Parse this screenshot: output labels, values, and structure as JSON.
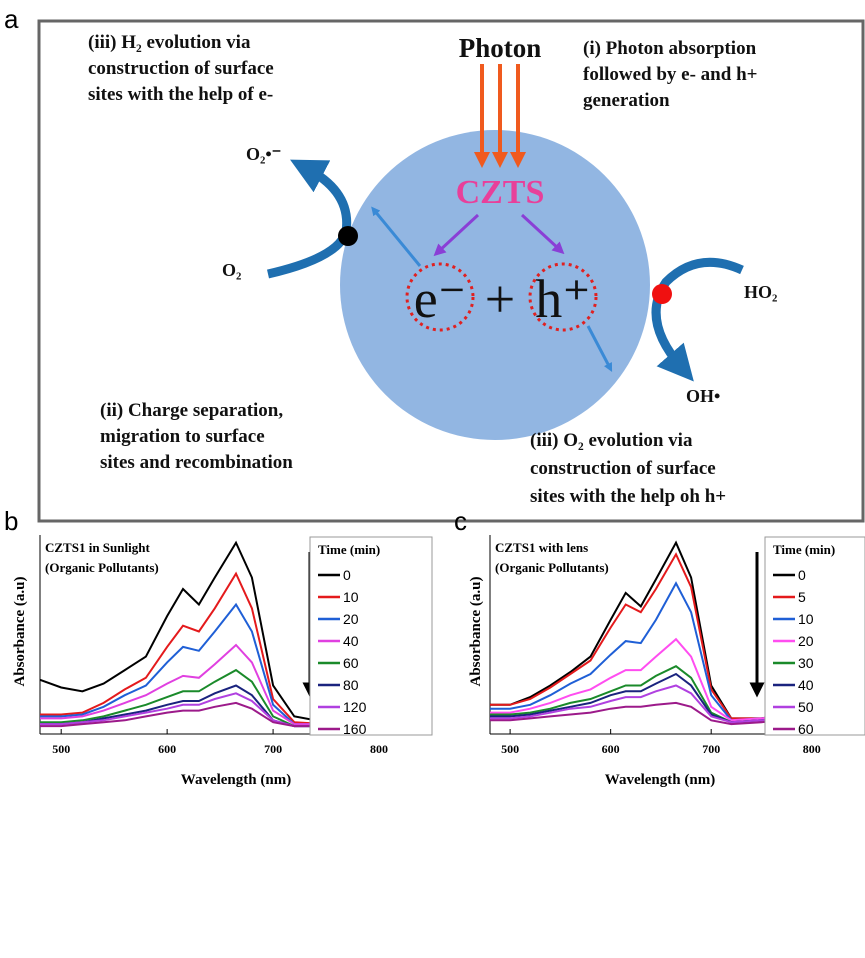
{
  "diagram": {
    "panel_label": "a",
    "photon": "Photon",
    "material": "CZTS",
    "electron": "e⁻",
    "plus": "+",
    "hole": "h⁺",
    "step_i": [
      "(i) Photon absorption",
      "followed by e- and h+",
      "generation"
    ],
    "step_iii_h2": [
      "(iii) H₂ evolution via",
      "construction of surface",
      "sites with the help of e-"
    ],
    "step_ii": [
      "(ii) Charge separation,",
      "migration to surface",
      "sites and recombination"
    ],
    "step_iii_o2": [
      "(iii) O₂ evolution via",
      "construction of surface",
      "sites with the help oh h+"
    ],
    "species": {
      "o2": "O₂",
      "o2_radical": "O₂•⁻",
      "ho2": "HO₂",
      "oh": "OH•"
    }
  },
  "chart_data": [
    {
      "type": "line",
      "panel_label": "b",
      "annotation": [
        "CZTS1 in Sunlight",
        "(Organic Pollutants)"
      ],
      "x_label": "Wavelength (nm)",
      "y_label": "Absorbance (a.u)",
      "legend_title": "Time (min)",
      "xlim": [
        480,
        850
      ],
      "ylim": [
        0,
        1
      ],
      "xticks": [
        500,
        600,
        700,
        800
      ],
      "x": [
        480,
        500,
        520,
        540,
        560,
        580,
        600,
        615,
        630,
        645,
        665,
        680,
        700,
        720,
        750,
        800,
        850
      ],
      "series": [
        {
          "name": "0",
          "color": "#000000",
          "values": [
            0.25,
            0.21,
            0.19,
            0.23,
            0.3,
            0.37,
            0.58,
            0.72,
            0.64,
            0.78,
            0.96,
            0.78,
            0.22,
            0.06,
            0.03,
            0.03,
            0.04
          ]
        },
        {
          "name": "10",
          "color": "#e41a1c",
          "values": [
            0.07,
            0.07,
            0.08,
            0.13,
            0.2,
            0.26,
            0.42,
            0.53,
            0.5,
            0.62,
            0.8,
            0.62,
            0.15,
            0.03,
            0.02,
            0.04,
            0.08
          ]
        },
        {
          "name": "20",
          "color": "#1f5fd6",
          "values": [
            0.06,
            0.06,
            0.07,
            0.11,
            0.17,
            0.22,
            0.34,
            0.42,
            0.4,
            0.5,
            0.64,
            0.5,
            0.12,
            0.02,
            0.02,
            0.04,
            0.07
          ]
        },
        {
          "name": "40",
          "color": "#e040e0",
          "values": [
            0.05,
            0.05,
            0.06,
            0.09,
            0.13,
            0.17,
            0.23,
            0.27,
            0.26,
            0.33,
            0.43,
            0.34,
            0.09,
            0.02,
            0.02,
            0.05,
            0.13
          ]
        },
        {
          "name": "60",
          "color": "#1a8a2a",
          "values": [
            0.03,
            0.03,
            0.04,
            0.06,
            0.09,
            0.12,
            0.16,
            0.19,
            0.19,
            0.24,
            0.3,
            0.24,
            0.06,
            0.01,
            0.01,
            0.02,
            0.06
          ]
        },
        {
          "name": "80",
          "color": "#1a237e",
          "values": [
            0.02,
            0.02,
            0.03,
            0.05,
            0.07,
            0.09,
            0.12,
            0.14,
            0.14,
            0.18,
            0.22,
            0.17,
            0.04,
            0.01,
            0.01,
            0.02,
            0.03
          ]
        },
        {
          "name": "120",
          "color": "#b040e0",
          "values": [
            0.02,
            0.02,
            0.03,
            0.04,
            0.06,
            0.08,
            0.1,
            0.12,
            0.12,
            0.15,
            0.18,
            0.14,
            0.04,
            0.01,
            0.01,
            0.02,
            0.03
          ]
        },
        {
          "name": "160",
          "color": "#9c1a8a",
          "values": [
            0.01,
            0.01,
            0.02,
            0.03,
            0.04,
            0.06,
            0.08,
            0.09,
            0.09,
            0.11,
            0.13,
            0.1,
            0.03,
            0.01,
            0.01,
            0.02,
            0.03
          ]
        }
      ]
    },
    {
      "type": "line",
      "panel_label": "c",
      "annotation": [
        "CZTS1 with lens",
        "(Organic Pollutants)"
      ],
      "x_label": "Wavelength (nm)",
      "y_label": "Absorbance (a.u)",
      "legend_title": "Time (min)",
      "xlim": [
        480,
        850
      ],
      "ylim": [
        0,
        1
      ],
      "xticks": [
        500,
        600,
        700,
        800
      ],
      "x": [
        480,
        500,
        520,
        540,
        560,
        580,
        600,
        615,
        630,
        645,
        665,
        680,
        700,
        720,
        750,
        800,
        850
      ],
      "series": [
        {
          "name": "0",
          "color": "#000000",
          "values": [
            0.12,
            0.12,
            0.16,
            0.22,
            0.29,
            0.37,
            0.56,
            0.7,
            0.63,
            0.77,
            0.96,
            0.78,
            0.22,
            0.05,
            0.05,
            0.09,
            0.2
          ]
        },
        {
          "name": "5",
          "color": "#e41a1c",
          "values": [
            0.12,
            0.12,
            0.15,
            0.21,
            0.28,
            0.35,
            0.52,
            0.64,
            0.6,
            0.72,
            0.9,
            0.73,
            0.2,
            0.05,
            0.05,
            0.09,
            0.2
          ]
        },
        {
          "name": "10",
          "color": "#1f5fd6",
          "values": [
            0.1,
            0.1,
            0.12,
            0.17,
            0.23,
            0.28,
            0.38,
            0.45,
            0.44,
            0.56,
            0.75,
            0.6,
            0.17,
            0.04,
            0.05,
            0.08,
            0.18
          ]
        },
        {
          "name": "20",
          "color": "#ff4df0",
          "values": [
            0.08,
            0.08,
            0.1,
            0.13,
            0.17,
            0.2,
            0.26,
            0.3,
            0.3,
            0.37,
            0.46,
            0.37,
            0.11,
            0.04,
            0.05,
            0.08,
            0.17
          ]
        },
        {
          "name": "30",
          "color": "#1a8a2a",
          "values": [
            0.07,
            0.07,
            0.08,
            0.1,
            0.13,
            0.15,
            0.19,
            0.22,
            0.22,
            0.27,
            0.32,
            0.26,
            0.08,
            0.03,
            0.04,
            0.07,
            0.15
          ]
        },
        {
          "name": "40",
          "color": "#1a237e",
          "values": [
            0.06,
            0.06,
            0.07,
            0.09,
            0.11,
            0.13,
            0.17,
            0.19,
            0.19,
            0.23,
            0.28,
            0.22,
            0.07,
            0.03,
            0.04,
            0.07,
            0.14
          ]
        },
        {
          "name": "50",
          "color": "#b040e0",
          "values": [
            0.05,
            0.05,
            0.06,
            0.08,
            0.1,
            0.11,
            0.14,
            0.16,
            0.16,
            0.19,
            0.22,
            0.18,
            0.06,
            0.03,
            0.04,
            0.06,
            0.13
          ]
        },
        {
          "name": "60",
          "color": "#9c1a8a",
          "values": [
            0.04,
            0.04,
            0.05,
            0.06,
            0.07,
            0.08,
            0.1,
            0.11,
            0.11,
            0.12,
            0.13,
            0.11,
            0.04,
            0.02,
            0.03,
            0.05,
            0.1
          ]
        }
      ]
    }
  ]
}
